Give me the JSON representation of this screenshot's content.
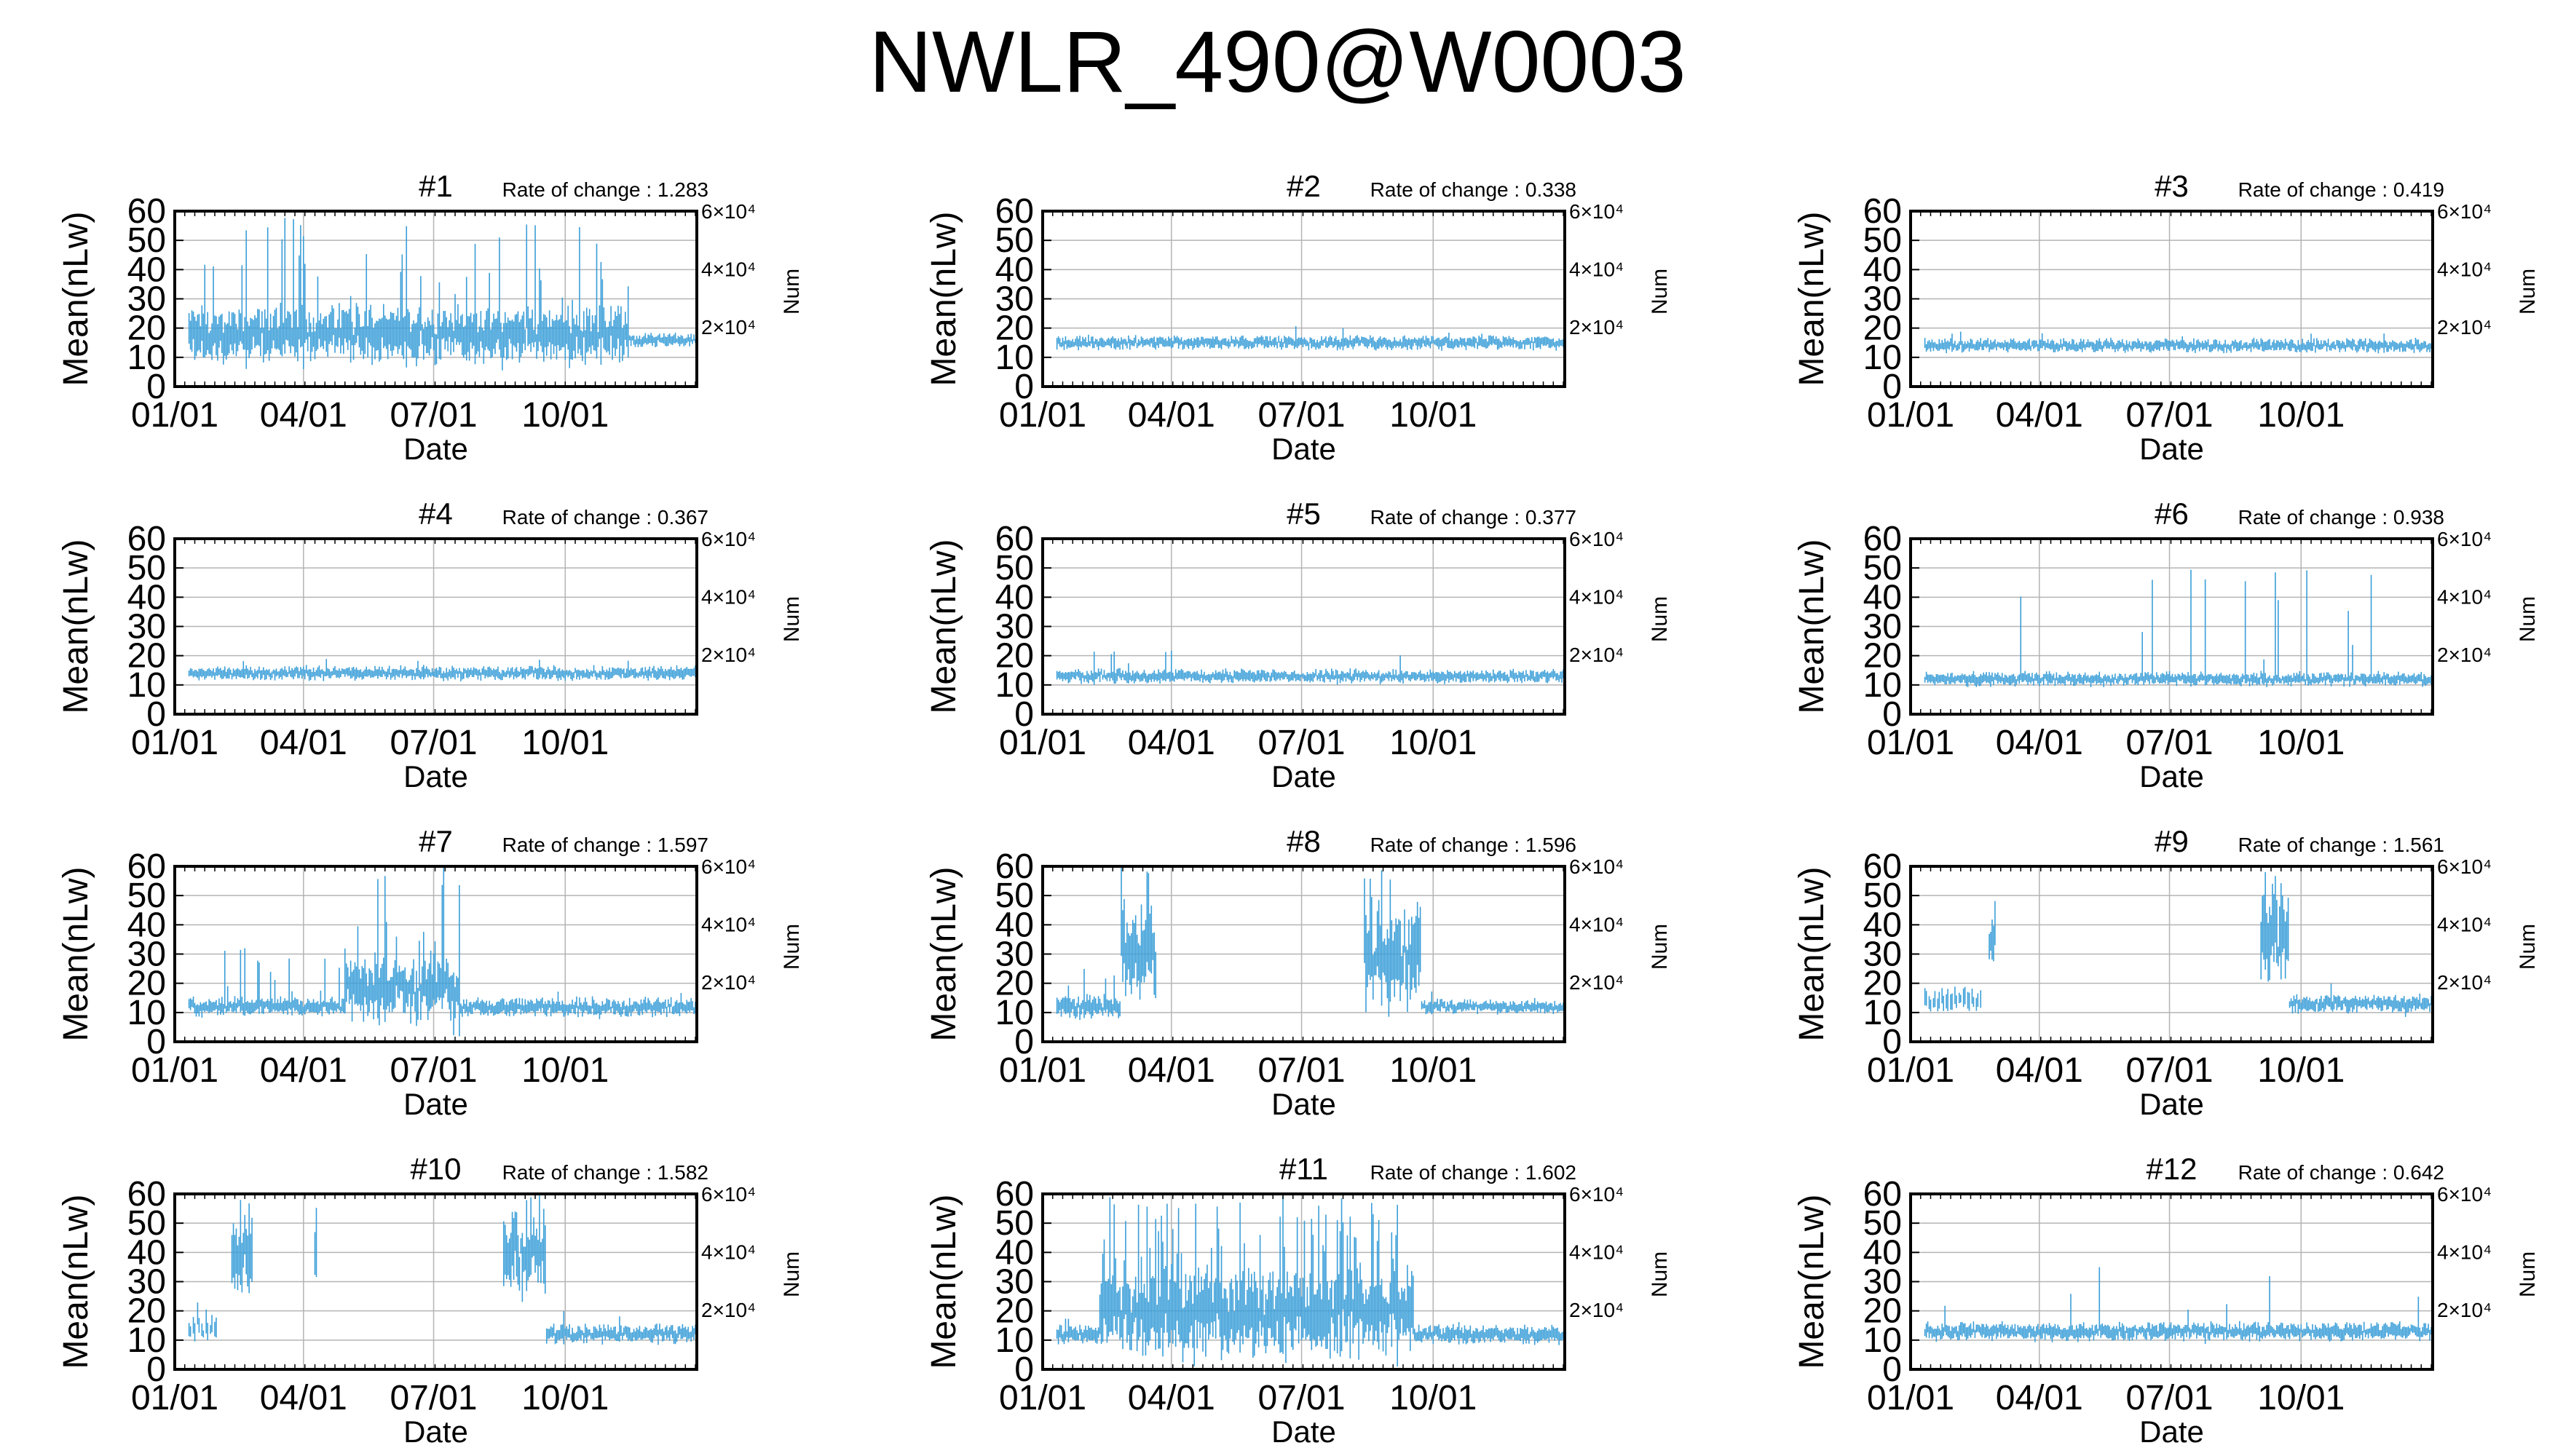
{
  "title": "NWLR_490@W0003",
  "colors": {
    "series": "#3a9ed8",
    "grid": "#b4b4b4",
    "frame": "#000000"
  },
  "chart_data": [
    {
      "type": "line",
      "panel_title": "#1",
      "rate_of_change": "Rate of change : 1.283",
      "xlabel": "Date",
      "ylabel": "Mean(nLw)",
      "y2label": "Num",
      "x_tick_labels": [
        "01/01",
        "04/01",
        "07/01",
        "10/01"
      ],
      "y_ticks": [
        "0",
        "10",
        "20",
        "30",
        "40",
        "50",
        "60"
      ],
      "y2_tick_labels": [
        "2×10⁴",
        "4×10⁴",
        "6×10⁴"
      ],
      "ylim": [
        0,
        60
      ],
      "xlim": [
        0,
        365
      ],
      "grid": true,
      "series": [
        {
          "values": [
            {
              "start": 10,
              "end": 318,
              "base": 18,
              "spread": 12,
              "spike": 0.12,
              "spikeMax": 58,
              "gapEvery": 0
            }
          ]
        },
        {
          "values": [
            {
              "start": 318,
              "end": 365,
              "base": 16,
              "spread": 3,
              "spike": 0,
              "spikeMax": 20,
              "gapEvery": 0
            }
          ]
        }
      ]
    },
    {
      "type": "line",
      "panel_title": "#2",
      "rate_of_change": "Rate of change : 0.338",
      "xlabel": "Date",
      "ylabel": "Mean(nLw)",
      "y2label": "Num",
      "x_tick_labels": [
        "01/01",
        "04/01",
        "07/01",
        "10/01"
      ],
      "y_ticks": [
        "0",
        "10",
        "20",
        "30",
        "40",
        "50",
        "60"
      ],
      "y2_tick_labels": [
        "2×10⁴",
        "4×10⁴",
        "6×10⁴"
      ],
      "ylim": [
        0,
        60
      ],
      "xlim": [
        0,
        365
      ],
      "grid": true,
      "series": [
        {
          "values": [
            {
              "start": 10,
              "end": 365,
              "base": 15,
              "spread": 3,
              "spike": 0.02,
              "spikeMax": 22,
              "gapEvery": 0
            }
          ]
        }
      ]
    },
    {
      "type": "line",
      "panel_title": "#3",
      "rate_of_change": "Rate of change : 0.419",
      "xlabel": "Date",
      "ylabel": "Mean(nLw)",
      "y2label": "Num",
      "x_tick_labels": [
        "01/01",
        "04/01",
        "07/01",
        "10/01"
      ],
      "y_ticks": [
        "0",
        "10",
        "20",
        "30",
        "40",
        "50",
        "60"
      ],
      "y2_tick_labels": [
        "2×10⁴",
        "4×10⁴",
        "6×10⁴"
      ],
      "ylim": [
        0,
        60
      ],
      "xlim": [
        0,
        365
      ],
      "grid": true,
      "series": [
        {
          "values": [
            {
              "start": 10,
              "end": 365,
              "base": 14,
              "spread": 3,
              "spike": 0.02,
              "spikeMax": 20,
              "gapEvery": 0
            }
          ]
        }
      ]
    },
    {
      "type": "line",
      "panel_title": "#4",
      "rate_of_change": "Rate of change : 0.367",
      "xlabel": "Date",
      "ylabel": "Mean(nLw)",
      "y2label": "Num",
      "x_tick_labels": [
        "01/01",
        "04/01",
        "07/01",
        "10/01"
      ],
      "y_ticks": [
        "0",
        "10",
        "20",
        "30",
        "40",
        "50",
        "60"
      ],
      "y2_tick_labels": [
        "2×10⁴",
        "4×10⁴",
        "6×10⁴"
      ],
      "ylim": [
        0,
        60
      ],
      "xlim": [
        0,
        365
      ],
      "grid": true,
      "series": [
        {
          "values": [
            {
              "start": 10,
              "end": 365,
              "base": 14,
              "spread": 3,
              "spike": 0.02,
              "spikeMax": 19,
              "gapEvery": 0
            }
          ]
        }
      ]
    },
    {
      "type": "line",
      "panel_title": "#5",
      "rate_of_change": "Rate of change : 0.377",
      "xlabel": "Date",
      "ylabel": "Mean(nLw)",
      "y2label": "Num",
      "x_tick_labels": [
        "01/01",
        "04/01",
        "07/01",
        "10/01"
      ],
      "y_ticks": [
        "0",
        "10",
        "20",
        "30",
        "40",
        "50",
        "60"
      ],
      "y2_tick_labels": [
        "2×10⁴",
        "4×10⁴",
        "6×10⁴"
      ],
      "ylim": [
        0,
        60
      ],
      "xlim": [
        0,
        365
      ],
      "grid": true,
      "series": [
        {
          "values": [
            {
              "start": 10,
              "end": 365,
              "base": 13,
              "spread": 3,
              "spike": 0.03,
              "spikeMax": 22,
              "gapEvery": 0
            }
          ]
        }
      ]
    },
    {
      "type": "line",
      "panel_title": "#6",
      "rate_of_change": "Rate of change : 0.938",
      "xlabel": "Date",
      "ylabel": "Mean(nLw)",
      "y2label": "Num",
      "x_tick_labels": [
        "01/01",
        "04/01",
        "07/01",
        "10/01"
      ],
      "y_ticks": [
        "0",
        "10",
        "20",
        "30",
        "40",
        "50",
        "60"
      ],
      "y2_tick_labels": [
        "2×10⁴",
        "4×10⁴",
        "6×10⁴"
      ],
      "ylim": [
        0,
        60
      ],
      "xlim": [
        0,
        365
      ],
      "grid": true,
      "series": [
        {
          "values": [
            {
              "start": 10,
              "end": 365,
              "base": 12,
              "spread": 3,
              "spike": 0.04,
              "spikeMax": 50,
              "gapEvery": 0
            }
          ]
        }
      ]
    },
    {
      "type": "line",
      "panel_title": "#7",
      "rate_of_change": "Rate of change : 1.597",
      "xlabel": "Date",
      "ylabel": "Mean(nLw)",
      "y2label": "Num",
      "x_tick_labels": [
        "01/01",
        "04/01",
        "07/01",
        "10/01"
      ],
      "y_ticks": [
        "0",
        "10",
        "20",
        "30",
        "40",
        "50",
        "60"
      ],
      "y2_tick_labels": [
        "2×10⁴",
        "4×10⁴",
        "6×10⁴"
      ],
      "ylim": [
        0,
        60
      ],
      "xlim": [
        0,
        365
      ],
      "grid": true,
      "series": [
        {
          "values": [
            {
              "start": 10,
              "end": 120,
              "base": 12,
              "spread": 4,
              "spike": 0.1,
              "spikeMax": 35,
              "gapEvery": 0
            },
            {
              "start": 120,
              "end": 200,
              "base": 18,
              "spread": 14,
              "spike": 0.3,
              "spikeMax": 60,
              "gapEvery": 0
            },
            {
              "start": 200,
              "end": 365,
              "base": 12,
              "spread": 4,
              "spike": 0.05,
              "spikeMax": 20,
              "gapEvery": 0
            }
          ]
        }
      ]
    },
    {
      "type": "line",
      "panel_title": "#8",
      "rate_of_change": "Rate of change : 1.596",
      "xlabel": "Date",
      "ylabel": "Mean(nLw)",
      "y2label": "Num",
      "x_tick_labels": [
        "01/01",
        "04/01",
        "07/01",
        "10/01"
      ],
      "y_ticks": [
        "0",
        "10",
        "20",
        "30",
        "40",
        "50",
        "60"
      ],
      "y2_tick_labels": [
        "2×10⁴",
        "4×10⁴",
        "6×10⁴"
      ],
      "ylim": [
        0,
        60
      ],
      "xlim": [
        0,
        365
      ],
      "grid": true,
      "series": [
        {
          "values": [
            {
              "start": 10,
              "end": 55,
              "base": 12,
              "spread": 5,
              "spike": 0.1,
              "spikeMax": 25,
              "gapEvery": 0
            },
            {
              "start": 55,
              "end": 80,
              "base": 30,
              "spread": 20,
              "spike": 0.4,
              "spikeMax": 60,
              "gapEvery": 0
            },
            {
              "start": 225,
              "end": 265,
              "base": 30,
              "spread": 20,
              "spike": 0.4,
              "spikeMax": 60,
              "gapEvery": 0
            },
            {
              "start": 265,
              "end": 365,
              "base": 12,
              "spread": 3,
              "spike": 0.03,
              "spikeMax": 20,
              "gapEvery": 0
            }
          ]
        }
      ]
    },
    {
      "type": "line",
      "panel_title": "#9",
      "rate_of_change": "Rate of change : 1.561",
      "xlabel": "Date",
      "ylabel": "Mean(nLw)",
      "y2label": "Num",
      "x_tick_labels": [
        "01/01",
        "04/01",
        "07/01",
        "10/01"
      ],
      "y_ticks": [
        "0",
        "10",
        "20",
        "30",
        "40",
        "50",
        "60"
      ],
      "y2_tick_labels": [
        "2×10⁴",
        "4×10⁴",
        "6×10⁴"
      ],
      "ylim": [
        0,
        60
      ],
      "xlim": [
        0,
        365
      ],
      "grid": true,
      "series": [
        {
          "values": [
            {
              "start": 10,
              "end": 50,
              "base": 14,
              "spread": 6,
              "spike": 0.2,
              "spikeMax": 30,
              "gapEvery": 3
            },
            {
              "start": 55,
              "end": 60,
              "base": 35,
              "spread": 15,
              "spike": 0.5,
              "spikeMax": 60,
              "gapEvery": 0
            },
            {
              "start": 245,
              "end": 265,
              "base": 35,
              "spread": 20,
              "spike": 0.5,
              "spikeMax": 60,
              "gapEvery": 0
            },
            {
              "start": 265,
              "end": 365,
              "base": 13,
              "spread": 4,
              "spike": 0.04,
              "spikeMax": 22,
              "gapEvery": 0
            }
          ]
        }
      ]
    },
    {
      "type": "line",
      "panel_title": "#10",
      "rate_of_change": "Rate of change : 1.582",
      "xlabel": "Date",
      "ylabel": "Mean(nLw)",
      "y2label": "Num",
      "x_tick_labels": [
        "01/01",
        "04/01",
        "07/01",
        "10/01"
      ],
      "y_ticks": [
        "0",
        "10",
        "20",
        "30",
        "40",
        "50",
        "60"
      ],
      "y2_tick_labels": [
        "2×10⁴",
        "4×10⁴",
        "6×10⁴"
      ],
      "ylim": [
        0,
        60
      ],
      "xlim": [
        0,
        365
      ],
      "grid": true,
      "series": [
        {
          "values": [
            {
              "start": 10,
              "end": 30,
              "base": 14,
              "spread": 6,
              "spike": 0.2,
              "spikeMax": 24,
              "gapEvery": 3
            },
            {
              "start": 40,
              "end": 55,
              "base": 40,
              "spread": 18,
              "spike": 0.5,
              "spikeMax": 58,
              "gapEvery": 0
            },
            {
              "start": 98,
              "end": 100,
              "base": 40,
              "spread": 18,
              "spike": 1,
              "spikeMax": 59,
              "gapEvery": 0
            },
            {
              "start": 230,
              "end": 260,
              "base": 40,
              "spread": 18,
              "spike": 0.5,
              "spikeMax": 60,
              "gapEvery": 0
            },
            {
              "start": 260,
              "end": 365,
              "base": 12,
              "spread": 4,
              "spike": 0.04,
              "spikeMax": 20,
              "gapEvery": 0
            }
          ]
        }
      ]
    },
    {
      "type": "line",
      "panel_title": "#11",
      "rate_of_change": "Rate of change : 1.602",
      "xlabel": "Date",
      "ylabel": "Mean(nLw)",
      "y2label": "Num",
      "x_tick_labels": [
        "01/01",
        "04/01",
        "07/01",
        "10/01"
      ],
      "y_ticks": [
        "0",
        "10",
        "20",
        "30",
        "40",
        "50",
        "60"
      ],
      "y2_tick_labels": [
        "2×10⁴",
        "4×10⁴",
        "6×10⁴"
      ],
      "ylim": [
        0,
        60
      ],
      "xlim": [
        0,
        365
      ],
      "grid": true,
      "series": [
        {
          "values": [
            {
              "start": 10,
              "end": 40,
              "base": 12,
              "spread": 4,
              "spike": 0.05,
              "spikeMax": 18,
              "gapEvery": 0
            },
            {
              "start": 40,
              "end": 260,
              "base": 20,
              "spread": 18,
              "spike": 0.35,
              "spikeMax": 60,
              "gapEvery": 0
            },
            {
              "start": 260,
              "end": 365,
              "base": 12,
              "spread": 4,
              "spike": 0.03,
              "spikeMax": 18,
              "gapEvery": 0
            }
          ]
        }
      ]
    },
    {
      "type": "line",
      "panel_title": "#12",
      "rate_of_change": "Rate of change : 0.642",
      "xlabel": "Date",
      "ylabel": "Mean(nLw)",
      "y2label": "Num",
      "x_tick_labels": [
        "01/01",
        "04/01",
        "07/01",
        "10/01"
      ],
      "y_ticks": [
        "0",
        "10",
        "20",
        "30",
        "40",
        "50",
        "60"
      ],
      "y2_tick_labels": [
        "2×10⁴",
        "4×10⁴",
        "6×10⁴"
      ],
      "ylim": [
        0,
        60
      ],
      "xlim": [
        0,
        365
      ],
      "grid": true,
      "series": [
        {
          "values": [
            {
              "start": 10,
              "end": 365,
              "base": 13,
              "spread": 4,
              "spike": 0.05,
              "spikeMax": 38,
              "gapEvery": 0
            }
          ]
        }
      ]
    }
  ]
}
